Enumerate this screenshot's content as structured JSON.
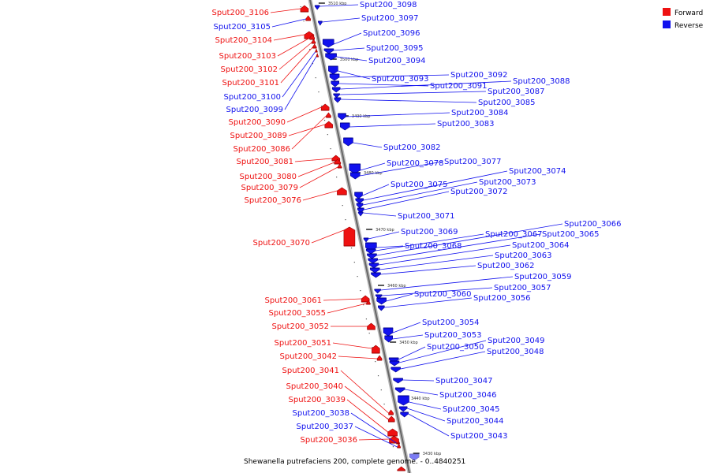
{
  "colors": {
    "forward": "#ee1111",
    "forward_dark": "#990000",
    "reverse": "#1111ee",
    "reverse_dark": "#000088",
    "axis": "#888888"
  },
  "legend": [
    {
      "label": "Forward",
      "color": "#ee1111"
    },
    {
      "label": "Reverse",
      "color": "#1111ee"
    }
  ],
  "caption": "Shewanella putrefaciens 200, complete genome. - 0..4840251",
  "ticks": [
    "3510 kbp",
    "3500 kbp",
    "3490 kbp",
    "3480 kbp",
    "3470 kbp",
    "3460 kbp",
    "3450 kbp",
    "3440 kbp",
    "3430 kbp"
  ],
  "forward_genes": [
    "Sput200_3106",
    "Sput200_3105",
    "Sput200_3104",
    "Sput200_3103",
    "Sput200_3102",
    "Sput200_3101",
    "Sput200_3090",
    "Sput200_3089",
    "Sput200_3086",
    "Sput200_3081",
    "Sput200_3080",
    "Sput200_3079",
    "Sput200_3076",
    "Sput200_3070",
    "Sput200_3061",
    "Sput200_3055",
    "Sput200_3052",
    "Sput200_3051",
    "Sput200_3042",
    "Sput200_3041",
    "Sput200_3040",
    "Sput200_3039",
    "Sput200_3036"
  ],
  "forward_blue_labels": [
    "Sput200_3105",
    "Sput200_3100",
    "Sput200_3099",
    "Sput200_3038",
    "Sput200_3037"
  ],
  "reverse_genes": [
    "Sput200_3098",
    "Sput200_3097",
    "Sput200_3096",
    "Sput200_3095",
    "Sput200_3094",
    "Sput200_3093",
    "Sput200_3092",
    "Sput200_3091",
    "Sput200_3088",
    "Sput200_3087",
    "Sput200_3085",
    "Sput200_3084",
    "Sput200_3083",
    "Sput200_3082",
    "Sput200_3078",
    "Sput200_3077",
    "Sput200_3075",
    "Sput200_3074",
    "Sput200_3073",
    "Sput200_3072",
    "Sput200_3071",
    "Sput200_3069",
    "Sput200_3068",
    "Sput200_3067",
    "Sput200_3066",
    "Sput200_3065",
    "Sput200_3064",
    "Sput200_3063",
    "Sput200_3062",
    "Sput200_3060",
    "Sput200_3059",
    "Sput200_3057",
    "Sput200_3056",
    "Sput200_3054",
    "Sput200_3053",
    "Sput200_3050",
    "Sput200_3049",
    "Sput200_3048",
    "Sput200_3047",
    "Sput200_3046",
    "Sput200_3045",
    "Sput200_3044",
    "Sput200_3043"
  ]
}
